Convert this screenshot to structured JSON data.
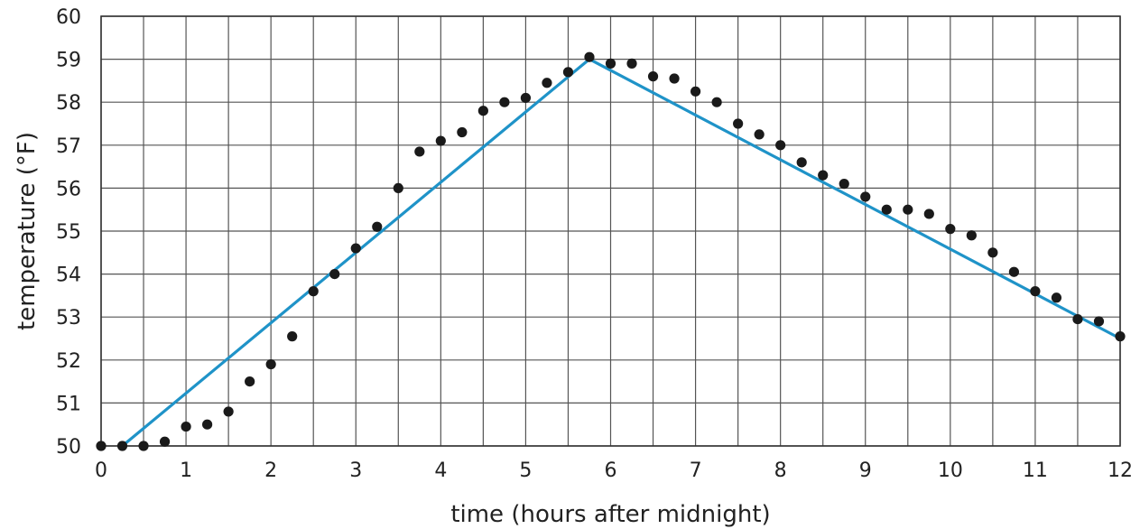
{
  "chart_data": {
    "type": "scatter",
    "title": "",
    "xlabel": "time (hours after midnight)",
    "ylabel": "temperature (°F)",
    "xlim": [
      0,
      12
    ],
    "ylim": [
      50,
      60
    ],
    "x_ticks": [
      0,
      1,
      2,
      3,
      4,
      5,
      6,
      7,
      8,
      9,
      10,
      11,
      12
    ],
    "y_ticks": [
      50,
      51,
      52,
      53,
      54,
      55,
      56,
      57,
      58,
      59,
      60
    ],
    "x_tick_labels": [
      "0",
      "1",
      "2",
      "3",
      "4",
      "5",
      "6",
      "7",
      "8",
      "9",
      "10",
      "11",
      "12"
    ],
    "y_tick_labels": [
      "50",
      "51",
      "52",
      "53",
      "54",
      "55",
      "56",
      "57",
      "58",
      "59",
      "60"
    ],
    "grid": true,
    "grid_x_step": 0.5,
    "grid_y_step": 1,
    "series": [
      {
        "type": "scatter",
        "color": "#1a1a1a",
        "x": [
          0,
          0.25,
          0.5,
          0.75,
          1,
          1.25,
          1.5,
          1.75,
          2,
          2.25,
          2.5,
          2.75,
          3,
          3.25,
          3.5,
          3.75,
          4,
          4.25,
          4.5,
          4.75,
          5,
          5.25,
          5.5,
          5.75,
          6,
          6.25,
          6.5,
          6.75,
          7,
          7.25,
          7.5,
          7.75,
          8,
          8.25,
          8.5,
          8.75,
          9,
          9.25,
          9.5,
          9.75,
          10,
          10.25,
          10.5,
          10.75,
          11,
          11.25,
          11.5,
          11.75,
          12
        ],
        "y": [
          50,
          50,
          50,
          50.1,
          50.45,
          50.5,
          50.8,
          51.5,
          51.9,
          52.55,
          53.6,
          54,
          54.6,
          55.1,
          56,
          56.85,
          57.1,
          57.3,
          57.8,
          58,
          58.1,
          58.45,
          58.7,
          59.05,
          58.9,
          58.9,
          58.6,
          58.55,
          58.25,
          58,
          57.5,
          57.25,
          57,
          56.6,
          56.3,
          56.1,
          55.8,
          55.5,
          55.5,
          55.4,
          55.05,
          54.9,
          54.5,
          54.05,
          53.6,
          53.45,
          52.95,
          52.9,
          52.55
        ]
      },
      {
        "type": "line",
        "color": "#1f93c8",
        "x": [
          0.25,
          5.75,
          12
        ],
        "y": [
          50,
          59,
          52.5
        ]
      }
    ]
  }
}
